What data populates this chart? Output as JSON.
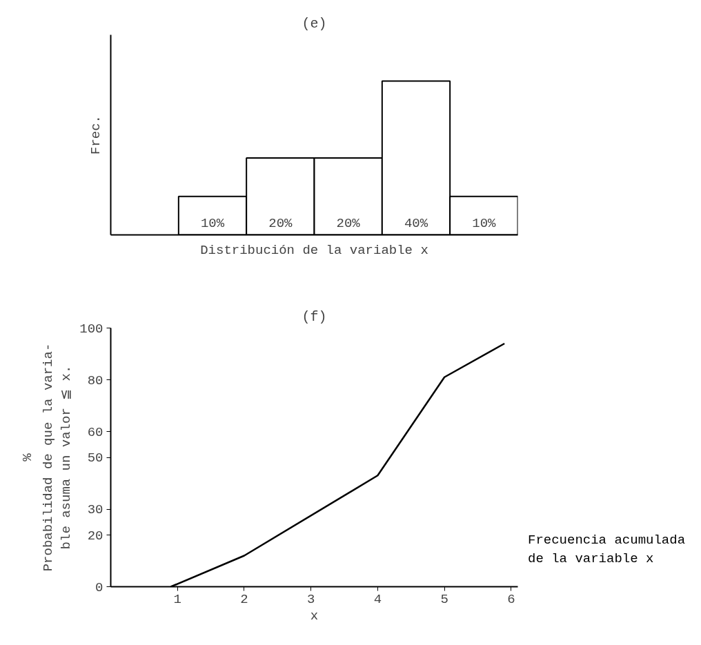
{
  "chart_data": [
    {
      "type": "bar",
      "title": "(e)",
      "xlabel": "Distribución de la variable x",
      "ylabel": "Frec.",
      "categories": [
        null,
        null,
        null,
        null,
        null
      ],
      "values": [
        10,
        20,
        20,
        40,
        10
      ],
      "value_labels": [
        "10%",
        "20%",
        "20%",
        "40%",
        "10%"
      ],
      "color": "#ffffff",
      "tick_labels": false,
      "grid": false
    },
    {
      "type": "line",
      "title": "(f)",
      "xlabel": "x",
      "ylabel": "Probabilidad de que la varia-\nble asuma un valor ≦ x.",
      "x": [
        0.9,
        2,
        4,
        5,
        5.9
      ],
      "values": [
        0,
        12,
        43,
        81,
        94
      ],
      "color": "#000000",
      "xlim": [
        0,
        6.1
      ],
      "xticks": [
        1,
        2,
        3,
        4,
        5,
        6
      ],
      "ylim": [
        0,
        100
      ],
      "yticks": [
        0,
        20,
        30,
        50,
        60,
        80,
        100
      ],
      "grid": false,
      "line_style": "solid",
      "marker": "none",
      "annotations": [
        "%",
        "Frecuencia acumulada\nde la variable x"
      ]
    }
  ]
}
